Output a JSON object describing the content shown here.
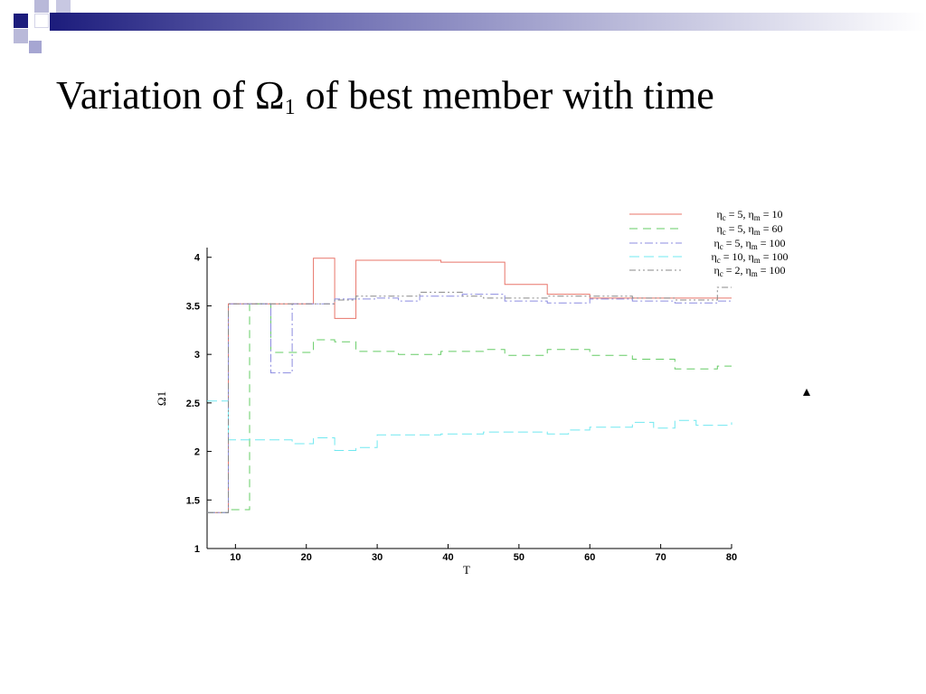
{
  "slide": {
    "title_main": "Variation of Ω",
    "title_sub": "1",
    "title_rest": " of best member with time"
  },
  "colors": {
    "header_dark": "#1c1c7c",
    "header_light": "#b9b9d9"
  },
  "chart_data": {
    "type": "line",
    "step": true,
    "xlabel": "T",
    "ylabel": "Ω1",
    "xlim": [
      6,
      80
    ],
    "ylim": [
      1,
      4.1
    ],
    "xticks": [
      10,
      20,
      30,
      40,
      50,
      60,
      70,
      80
    ],
    "yticks": [
      1,
      1.5,
      2,
      2.5,
      3,
      3.5,
      4
    ],
    "grid": false,
    "legend_position": "top-right",
    "series": [
      {
        "name": "ηc = 5, ηm = 10",
        "color": "#e8756a",
        "dash": "",
        "x": [
          6,
          9,
          21,
          24,
          27,
          39,
          48,
          54,
          60,
          80
        ],
        "y": [
          1.37,
          3.52,
          3.99,
          3.37,
          3.97,
          3.95,
          3.72,
          3.62,
          3.58,
          3.58
        ]
      },
      {
        "name": "ηc = 5, ηm = 60",
        "color": "#66cc66",
        "dash": "9,6",
        "x": [
          6,
          9,
          12,
          15,
          21,
          24,
          27,
          33,
          39,
          45,
          48,
          54,
          60,
          66,
          72,
          78,
          80
        ],
        "y": [
          1.37,
          1.4,
          3.52,
          3.02,
          3.15,
          3.13,
          3.03,
          3.0,
          3.03,
          3.05,
          2.99,
          3.05,
          2.99,
          2.95,
          2.85,
          2.88,
          2.88
        ]
      },
      {
        "name": "ηc = 5, ηm = 100",
        "color": "#8c8ce0",
        "dash": "9,3,2,3",
        "x": [
          6,
          9,
          15,
          18,
          24,
          30,
          33,
          36,
          42,
          48,
          54,
          60,
          66,
          72,
          78,
          80
        ],
        "y": [
          1.37,
          3.52,
          2.81,
          3.52,
          3.57,
          3.58,
          3.55,
          3.6,
          3.62,
          3.55,
          3.53,
          3.57,
          3.55,
          3.53,
          3.55,
          3.55
        ]
      },
      {
        "name": "ηc = 10, ηm = 100",
        "color": "#70e8f0",
        "dash": "11,5",
        "x": [
          6,
          9,
          18,
          21,
          24,
          27,
          30,
          39,
          45,
          54,
          57,
          60,
          66,
          69,
          72,
          75,
          80
        ],
        "y": [
          2.52,
          2.12,
          2.08,
          2.14,
          2.01,
          2.04,
          2.17,
          2.18,
          2.2,
          2.18,
          2.22,
          2.25,
          2.3,
          2.24,
          2.32,
          2.27,
          2.3
        ]
      },
      {
        "name": "ηc = 2, ηm = 100",
        "color": "#888888",
        "dash": "7,3,2,3,2,3",
        "x": [
          6,
          9,
          21,
          24,
          27,
          36,
          42,
          45,
          54,
          60,
          66,
          72,
          78,
          80
        ],
        "y": [
          1.37,
          3.52,
          3.52,
          3.56,
          3.6,
          3.64,
          3.6,
          3.58,
          3.6,
          3.6,
          3.58,
          3.56,
          3.69,
          3.69
        ]
      }
    ]
  }
}
